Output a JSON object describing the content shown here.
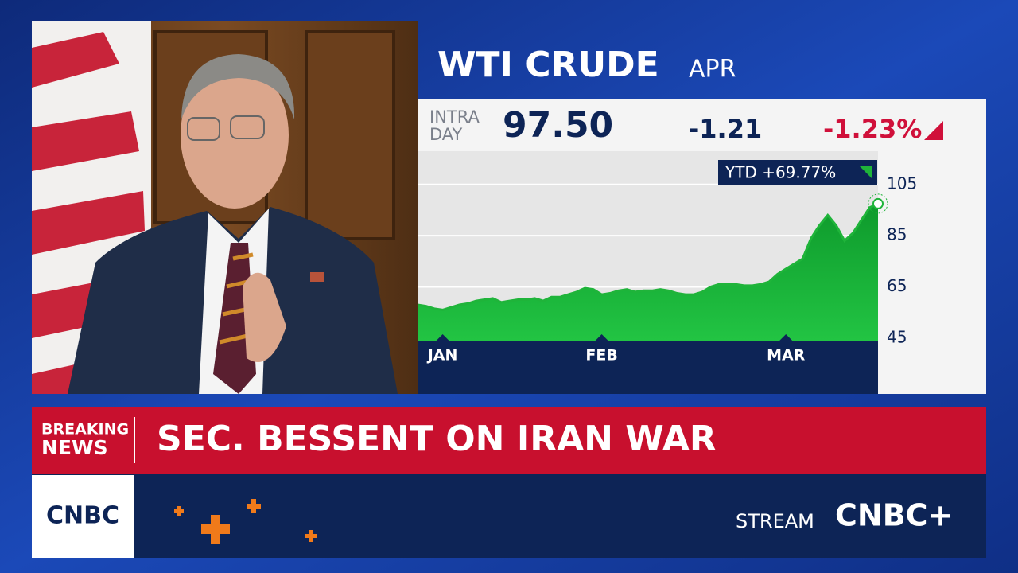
{
  "quote": {
    "symbol": "WTI CRUDE",
    "contract": "APR",
    "session": [
      "INTRA",
      "DAY"
    ],
    "last": "97.50",
    "change": "-1.21",
    "change_pct": "-1.23%",
    "ytd": "YTD +69.77%"
  },
  "chart_data": {
    "type": "area",
    "categories": [
      null,
      null,
      null,
      "JAN",
      null,
      null,
      null,
      null,
      null,
      null,
      null,
      null,
      null,
      null,
      null,
      null,
      null,
      null,
      null,
      null,
      null,
      null,
      "FEB",
      null,
      null,
      null,
      null,
      null,
      null,
      null,
      null,
      null,
      null,
      null,
      null,
      null,
      null,
      null,
      null,
      null,
      null,
      null,
      null,
      null,
      "MAR",
      null,
      null,
      null,
      null,
      null,
      null,
      null,
      null,
      null,
      null,
      null
    ],
    "values": [
      58,
      57.5,
      56.5,
      56,
      57,
      58,
      58.5,
      59.5,
      60,
      60.5,
      59,
      59.5,
      60,
      60,
      60.5,
      59.5,
      61,
      61,
      62,
      63,
      64.5,
      64,
      62,
      62.5,
      63.5,
      64,
      63,
      63.5,
      63.5,
      64,
      63.5,
      62.5,
      62,
      62,
      63,
      65,
      66,
      66,
      66,
      65.5,
      65.5,
      66,
      67,
      70,
      72,
      74,
      76,
      84,
      89,
      93,
      89,
      83,
      86,
      91,
      96,
      97.5
    ],
    "color": "#1fb43a",
    "ylim": [
      44,
      118
    ],
    "yticks": [
      45,
      65,
      85,
      105
    ],
    "grid": true
  },
  "banner": {
    "label": [
      "BREAKING",
      "NEWS"
    ],
    "headline": "SEC. BESSENT ON IRAN WAR"
  },
  "footer": {
    "logo": "CNBC",
    "stream": "STREAM",
    "brand": "CNBC+"
  }
}
